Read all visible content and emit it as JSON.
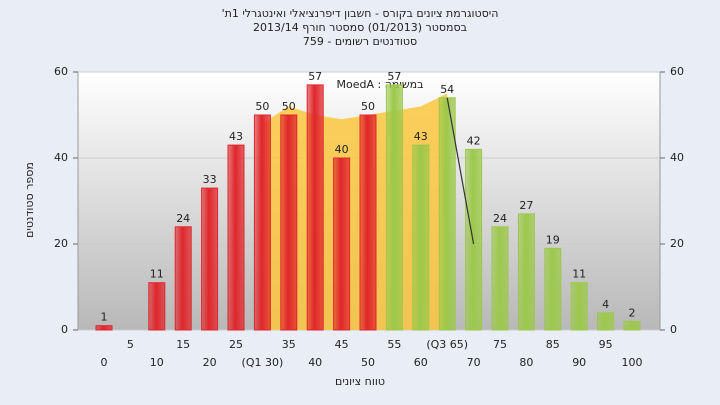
{
  "chart_data": {
    "type": "bar",
    "title": [
      "היסטוגרמת ציונים בקורס - חשבון דיפרנציאלי ואינטגרלי 1ת'",
      "בסמסטר (01/2013) סמסטר חורף 2013/14",
      "סטודנטים רשומים - 759"
    ],
    "annotation": "במשימה : MoedA",
    "x_label": "טווח ציונים",
    "y_label": "מספר סטודנטים",
    "categories": [
      "0",
      "5",
      "10",
      "15",
      "20",
      "25",
      "(Q1 30)",
      "35",
      "40",
      "45",
      "50",
      "55",
      "60",
      "(Q3 65)",
      "70",
      "75",
      "80",
      "85",
      "90",
      "95",
      "100"
    ],
    "values": [
      1,
      null,
      11,
      24,
      33,
      43,
      50,
      50,
      57,
      40,
      50,
      57,
      43,
      54,
      42,
      24,
      27,
      19,
      11,
      4,
      2
    ],
    "colors": [
      "#e0262b",
      "#e0262b",
      "#e0262b",
      "#e0262b",
      "#e0262b",
      "#e0262b",
      "#e0262b",
      "#e0262b",
      "#e0262b",
      "#e0262b",
      "#e0262b",
      "#9cc84a",
      "#9cc84a",
      "#9cc84a",
      "#9cc84a",
      "#9cc84a",
      "#9cc84a",
      "#9cc84a",
      "#9cc84a",
      "#9cc84a",
      "#9cc84a"
    ],
    "area": {
      "color": "#fbc740",
      "values": [
        null,
        null,
        null,
        null,
        null,
        null,
        48,
        52,
        50,
        49,
        50,
        51,
        52,
        55,
        null,
        null,
        null,
        null,
        null,
        null,
        null
      ]
    },
    "line": {
      "color": "#333333",
      "values": [
        null,
        null,
        null,
        null,
        null,
        null,
        null,
        null,
        null,
        null,
        null,
        null,
        null,
        54,
        20,
        null,
        null,
        null,
        null,
        null,
        null
      ]
    },
    "ylim": [
      0,
      60
    ],
    "yticks": [
      0,
      20,
      40,
      60
    ],
    "y2lim": [
      0,
      60
    ],
    "y2ticks": [
      0,
      20,
      40,
      60
    ],
    "grid": true
  }
}
